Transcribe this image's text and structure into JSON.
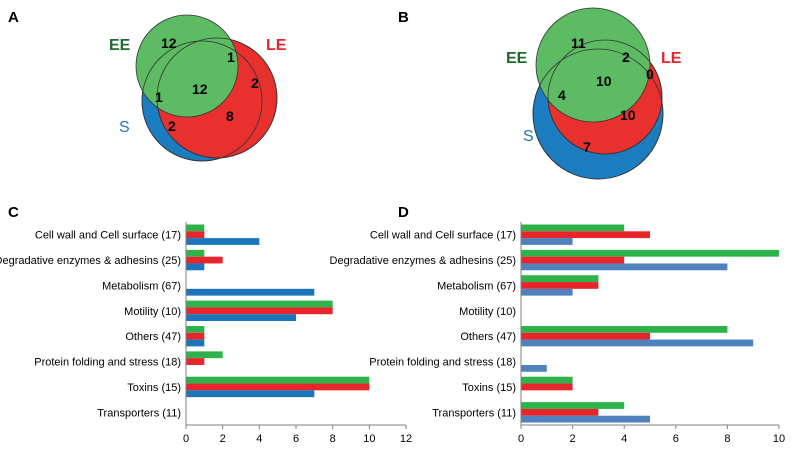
{
  "colors": {
    "EE": "#2eb34a",
    "LE": "#e8252b",
    "S": "#1b75bb",
    "S_light": "#4f81bd",
    "ee_venn": "#5dbb63",
    "le_venn": "#e8302f",
    "s_venn": "#1b7cc0",
    "axis": "#7f7f7f"
  },
  "panel_labels": [
    "A",
    "B",
    "C",
    "D"
  ],
  "chart_data": [
    {
      "type": "venn",
      "panel": "A",
      "sets": [
        {
          "key": "EE",
          "label": "EE"
        },
        {
          "key": "LE",
          "label": "LE"
        },
        {
          "key": "S",
          "label": "S"
        }
      ],
      "regions": {
        "EE_only": "12",
        "EE_LE": "1",
        "LE_only": "2",
        "EE_LE_S": "12",
        "EE_S": "1",
        "LE_S": "8",
        "S_only": "2"
      }
    },
    {
      "type": "venn",
      "panel": "B",
      "sets": [
        {
          "key": "EE",
          "label": "EE"
        },
        {
          "key": "LE",
          "label": "LE"
        },
        {
          "key": "S",
          "label": "S"
        }
      ],
      "regions": {
        "EE_only": "11",
        "EE_LE": "2",
        "LE_only": "0",
        "EE_LE_S": "10",
        "EE_S": "4",
        "LE_S": "10",
        "S_only": "7"
      }
    },
    {
      "type": "bar",
      "orientation": "horizontal",
      "panel": "C",
      "categories": [
        "Cell wall and Cell surface (17)",
        "Degradative enzymes & adhesins (25)",
        "Metabolism (67)",
        "Motility (10)",
        "Others (47)",
        "Protein folding and stress (18)",
        "Toxins (15)",
        "Transporters (11)"
      ],
      "series": [
        {
          "name": "EE",
          "values": [
            1,
            1,
            0,
            8,
            1,
            2,
            10,
            0
          ]
        },
        {
          "name": "LE",
          "values": [
            1,
            2,
            0,
            8,
            1,
            1,
            10,
            0
          ]
        },
        {
          "name": "S",
          "values": [
            4,
            1,
            7,
            6,
            1,
            0,
            7,
            0
          ]
        }
      ],
      "xlim": [
        0,
        12
      ],
      "xticks": [
        0,
        2,
        4,
        6,
        8,
        10,
        12
      ],
      "grid": false
    },
    {
      "type": "bar",
      "orientation": "horizontal",
      "panel": "D",
      "categories": [
        "Cell wall and Cell surface (17)",
        "Degradative enzymes & adhesins (25)",
        "Metabolism (67)",
        "Motility (10)",
        "Others (47)",
        "Protein folding and stress (18)",
        "Toxins (15)",
        "Transporters (11)"
      ],
      "series": [
        {
          "name": "EE",
          "values": [
            4,
            10,
            3,
            0,
            8,
            0,
            2,
            4
          ]
        },
        {
          "name": "LE",
          "values": [
            5,
            4,
            3,
            0,
            5,
            0,
            2,
            3
          ]
        },
        {
          "name": "S",
          "values": [
            2,
            8,
            2,
            0,
            9,
            1,
            0,
            5
          ]
        }
      ],
      "xlim": [
        0,
        10
      ],
      "xticks": [
        0,
        2,
        4,
        6,
        8,
        10
      ],
      "grid": false
    }
  ]
}
